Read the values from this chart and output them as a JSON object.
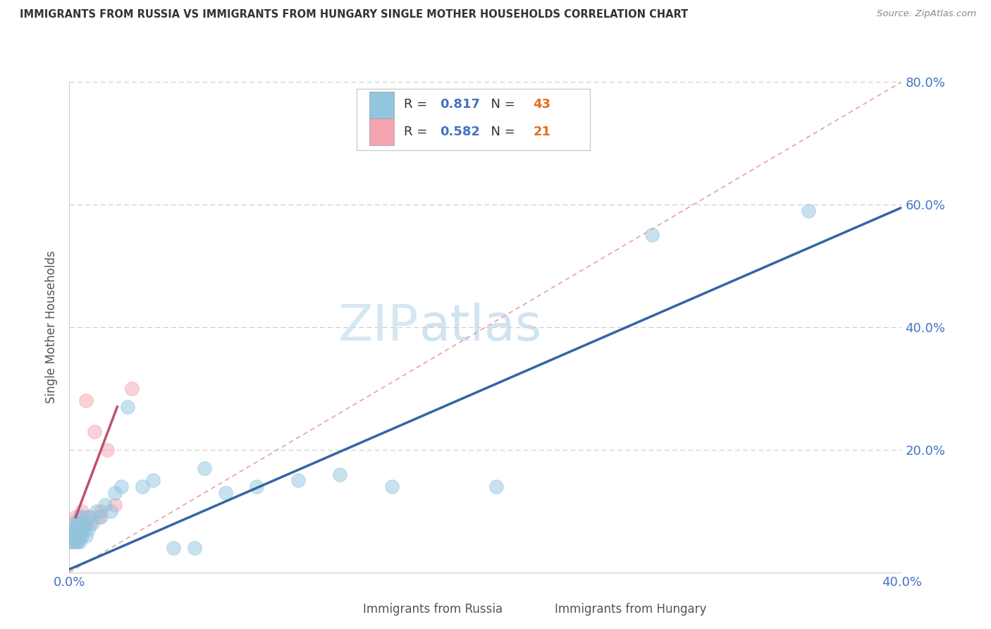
{
  "title": "IMMIGRANTS FROM RUSSIA VS IMMIGRANTS FROM HUNGARY SINGLE MOTHER HOUSEHOLDS CORRELATION CHART",
  "source": "Source: ZipAtlas.com",
  "ylabel": "Single Mother Households",
  "xlim": [
    0.0,
    0.4
  ],
  "ylim": [
    0.0,
    0.8
  ],
  "xticks": [
    0.0,
    0.05,
    0.1,
    0.15,
    0.2,
    0.25,
    0.3,
    0.35,
    0.4
  ],
  "yticks": [
    0.0,
    0.2,
    0.4,
    0.6,
    0.8
  ],
  "xtick_labels": [
    "0.0%",
    "",
    "",
    "",
    "",
    "",
    "",
    "",
    "40.0%"
  ],
  "ytick_labels_right": [
    "",
    "20.0%",
    "40.0%",
    "60.0%",
    "80.0%"
  ],
  "r_russia": 0.817,
  "n_russia": 43,
  "r_hungary": 0.582,
  "n_hungary": 21,
  "russia_color": "#92c5de",
  "hungary_color": "#f4a5b0",
  "russia_line_color": "#3465a4",
  "hungary_line_color": "#c05070",
  "diag_line_color": "#e8a0a0",
  "watermark_zip": "ZIP",
  "watermark_atlas": "atlas",
  "russia_scatter_x": [
    0.001,
    0.001,
    0.002,
    0.002,
    0.002,
    0.003,
    0.003,
    0.003,
    0.004,
    0.004,
    0.004,
    0.005,
    0.005,
    0.005,
    0.006,
    0.006,
    0.007,
    0.007,
    0.008,
    0.008,
    0.009,
    0.01,
    0.011,
    0.013,
    0.015,
    0.017,
    0.02,
    0.022,
    0.025,
    0.028,
    0.035,
    0.04,
    0.05,
    0.06,
    0.065,
    0.075,
    0.09,
    0.11,
    0.13,
    0.155,
    0.205,
    0.28,
    0.355
  ],
  "russia_scatter_y": [
    0.05,
    0.06,
    0.05,
    0.07,
    0.08,
    0.05,
    0.06,
    0.07,
    0.05,
    0.06,
    0.08,
    0.05,
    0.07,
    0.09,
    0.06,
    0.08,
    0.07,
    0.09,
    0.06,
    0.08,
    0.07,
    0.09,
    0.08,
    0.1,
    0.09,
    0.11,
    0.1,
    0.13,
    0.14,
    0.27,
    0.14,
    0.15,
    0.04,
    0.04,
    0.17,
    0.13,
    0.14,
    0.15,
    0.16,
    0.14,
    0.14,
    0.55,
    0.59
  ],
  "hungary_scatter_x": [
    0.001,
    0.001,
    0.002,
    0.002,
    0.003,
    0.003,
    0.004,
    0.005,
    0.005,
    0.006,
    0.006,
    0.007,
    0.008,
    0.009,
    0.01,
    0.012,
    0.014,
    0.015,
    0.018,
    0.022,
    0.03
  ],
  "hungary_scatter_y": [
    0.05,
    0.07,
    0.06,
    0.08,
    0.07,
    0.09,
    0.05,
    0.06,
    0.09,
    0.07,
    0.1,
    0.08,
    0.28,
    0.09,
    0.08,
    0.23,
    0.09,
    0.1,
    0.2,
    0.11,
    0.3
  ],
  "russia_line_x0": 0.0,
  "russia_line_y0": 0.005,
  "russia_line_x1": 0.4,
  "russia_line_y1": 0.595,
  "hungary_line_x0": 0.003,
  "hungary_line_y0": 0.09,
  "hungary_line_x1": 0.023,
  "hungary_line_y1": 0.27
}
